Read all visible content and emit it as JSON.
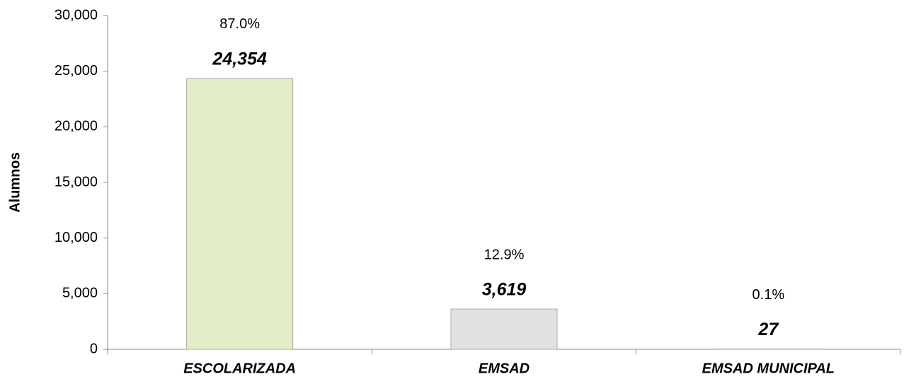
{
  "chart_data": {
    "type": "bar",
    "y_axis_label": "Alumnos",
    "categories": [
      "ESCOLARIZADA",
      "EMSAD",
      "EMSAD MUNICIPAL"
    ],
    "values": [
      24354,
      3619,
      27
    ],
    "value_labels": [
      "24,354",
      "3,619",
      "27"
    ],
    "percent_labels": [
      "87.0%",
      "12.9%",
      "0.1%"
    ],
    "colors": [
      "#e3efc6",
      "#e2e2e2",
      "#e2e2e2"
    ],
    "ylim": [
      0,
      30000
    ],
    "yticks": [
      0,
      {
        "value": 5000,
        "label": "5,000"
      },
      {
        "value": 10000,
        "label": "10,000"
      },
      {
        "value": 15000,
        "label": "15,000"
      },
      {
        "value": 20000,
        "label": "20,000"
      },
      {
        "value": 25000,
        "label": "25,000"
      },
      {
        "value": 30000,
        "label": "30,000"
      }
    ],
    "grid": false
  }
}
